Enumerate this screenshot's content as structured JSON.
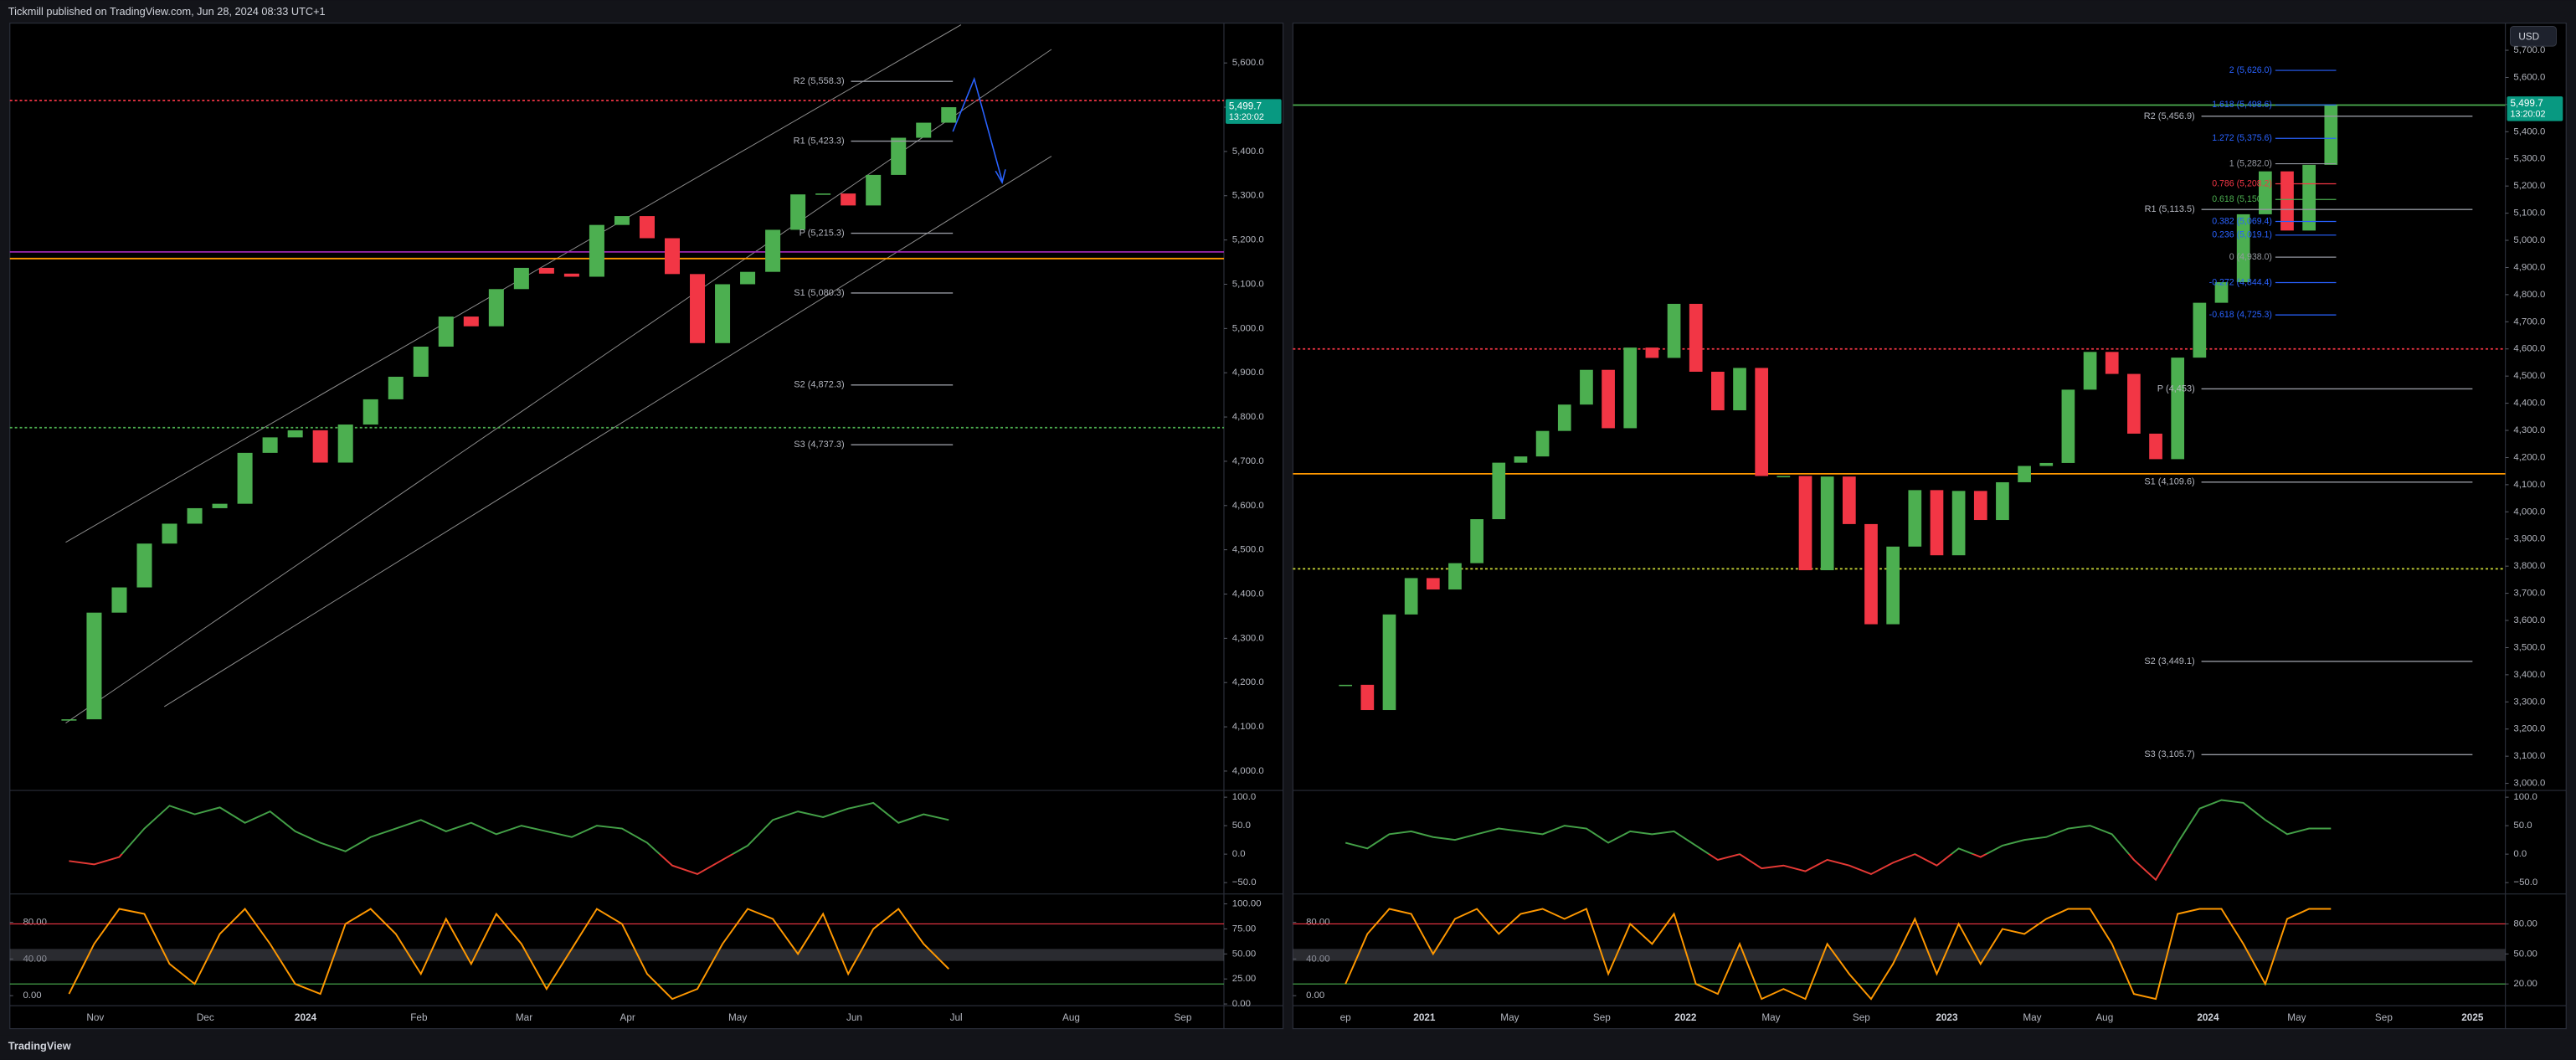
{
  "header": {
    "text": "Tickmill published on TradingView.com, Jun 28, 2024 08:33 UTC+1"
  },
  "footer": {
    "brand": "TradingView"
  },
  "currency": "USD",
  "chart_data": [
    {
      "type": "candlestick",
      "values": [
        4117,
        4358,
        4415,
        4514,
        4559,
        4594,
        4604,
        4719,
        4754,
        4770,
        4697,
        4783,
        4840,
        4891,
        4959,
        5027,
        5005,
        5089,
        5137,
        5124,
        5117,
        5234,
        5254,
        5204,
        5123,
        4967,
        5100,
        5128,
        5223,
        5303,
        5305,
        5278,
        5347,
        5431,
        5465,
        5500
      ],
      "up_color": "#4caf50",
      "down_color": "#f23645",
      "ylim": [
        3960,
        5690
      ],
      "yticks": [
        {
          "value": 4000,
          "label": "4,000.0"
        },
        {
          "value": 4100,
          "label": "4,100.0"
        },
        {
          "value": 4200,
          "label": "4,200.0"
        },
        {
          "value": 4300,
          "label": "4,300.0"
        },
        {
          "value": 4400,
          "label": "4,400.0"
        },
        {
          "value": 4500,
          "label": "4,500.0"
        },
        {
          "value": 4600,
          "label": "4,600.0"
        },
        {
          "value": 4700,
          "label": "4,700.0"
        },
        {
          "value": 4800,
          "label": "4,800.0"
        },
        {
          "value": 4900,
          "label": "4,900.0"
        },
        {
          "value": 5000,
          "label": "5,000.0"
        },
        {
          "value": 5100,
          "label": "5,100.0"
        },
        {
          "value": 5200,
          "label": "5,200.0"
        },
        {
          "value": 5300,
          "label": "5,300.0"
        },
        {
          "value": 5400,
          "label": "5,400.0"
        },
        {
          "value": 5500,
          "label": "5,500.0"
        },
        {
          "value": 5600,
          "label": "5,600.0"
        }
      ],
      "last_price": {
        "value": 5499.7,
        "label": "5,499.7"
      },
      "countdown": "13:20:02",
      "pivots": [
        {
          "label": "R2 (5,558.3)",
          "value": 5558.3
        },
        {
          "label": "R1 (5,423.3)",
          "value": 5423.3
        },
        {
          "label": "P (5,215.3)",
          "value": 5215.3
        },
        {
          "label": "S1 (5,080.3)",
          "value": 5080.3
        },
        {
          "label": "S2 (4,872.3)",
          "value": 4872.3
        },
        {
          "label": "S3 (4,737.3)",
          "value": 4737.3
        }
      ],
      "levels": [
        {
          "value": 5515,
          "color": "#f23645",
          "style": "dotted"
        },
        {
          "value": 5173,
          "color": "#9c27b0",
          "style": "solid"
        },
        {
          "value": 5158,
          "color": "#ff9800",
          "style": "solid"
        },
        {
          "value": 4776,
          "color": "#4caf50",
          "style": "dotted"
        }
      ]
    },
    {
      "type": "line",
      "values": [
        -12,
        -18,
        -5,
        45,
        85,
        70,
        82,
        55,
        75,
        40,
        20,
        5,
        30,
        45,
        60,
        40,
        55,
        35,
        50,
        40,
        30,
        50,
        45,
        20,
        -20,
        -35,
        -10,
        15,
        60,
        75,
        65,
        80,
        90,
        55,
        70,
        60
      ],
      "color_above": "#43a047",
      "color_below": "#e53935",
      "ylim": [
        -67,
        109
      ],
      "yticks": [
        {
          "value": 100,
          "label": "100.0"
        },
        {
          "value": 50,
          "label": "50.0"
        },
        {
          "value": 0,
          "label": "0.0"
        },
        {
          "value": -50,
          "label": "−50.0"
        }
      ]
    },
    {
      "type": "line",
      "values": [
        10,
        60,
        95,
        90,
        40,
        20,
        70,
        95,
        60,
        20,
        10,
        80,
        95,
        70,
        30,
        85,
        40,
        90,
        60,
        15,
        55,
        95,
        80,
        30,
        5,
        15,
        60,
        95,
        85,
        50,
        90,
        30,
        75,
        95,
        60,
        35
      ],
      "color": "#ff9800",
      "ylim": [
        -1.7,
        108.3
      ],
      "yticks": [
        {
          "value": 100,
          "label": "100.00"
        },
        {
          "value": 75,
          "label": "75.00"
        },
        {
          "value": 50,
          "label": "50.00"
        },
        {
          "value": 25,
          "label": "25.00"
        },
        {
          "value": 0,
          "label": "0.00"
        }
      ],
      "y2lim": [
        -10.9,
        109.1
      ],
      "y2ticks": [
        {
          "value": 80,
          "label": "80.00"
        },
        {
          "value": 40,
          "label": "40.00"
        },
        {
          "value": 0,
          "label": "0.00"
        }
      ],
      "ref_lines": [
        {
          "value": 80,
          "color": "#f23645"
        },
        {
          "value": 20,
          "color": "#4caf50"
        }
      ],
      "band": [
        43,
        55
      ],
      "xtick_labels": [
        "Nov",
        "Dec",
        "2024",
        "Feb",
        "Mar",
        "Apr",
        "May",
        "Jun",
        "Jul",
        "Aug",
        "Sep"
      ]
    },
    {
      "type": "candlestick",
      "values": [
        3363,
        3270,
        3622,
        3756,
        3714,
        3811,
        3973,
        4181,
        4204,
        4298,
        4395,
        4523,
        4308,
        4605,
        4567,
        4766,
        4516,
        4374,
        4530,
        4132,
        4132,
        3785,
        4130,
        3955,
        3586,
        3872,
        4080,
        3840,
        4077,
        3970,
        4109,
        4169,
        4180,
        4450,
        4589,
        4508,
        4288,
        4194,
        4568,
        4770,
        4846,
        5096,
        5254,
        5036,
        5278,
        5500
      ],
      "up_color": "#4caf50",
      "down_color": "#f23645",
      "ylim": [
        2980,
        5800
      ],
      "yticks": [
        {
          "value": 3000,
          "label": "3,000.0"
        },
        {
          "value": 3100,
          "label": "3,100.0"
        },
        {
          "value": 3200,
          "label": "3,200.0"
        },
        {
          "value": 3300,
          "label": "3,300.0"
        },
        {
          "value": 3400,
          "label": "3,400.0"
        },
        {
          "value": 3500,
          "label": "3,500.0"
        },
        {
          "value": 3600,
          "label": "3,600.0"
        },
        {
          "value": 3700,
          "label": "3,700.0"
        },
        {
          "value": 3800,
          "label": "3,800.0"
        },
        {
          "value": 3900,
          "label": "3,900.0"
        },
        {
          "value": 4000,
          "label": "4,000.0"
        },
        {
          "value": 4100,
          "label": "4,100.0"
        },
        {
          "value": 4200,
          "label": "4,200.0"
        },
        {
          "value": 4300,
          "label": "4,300.0"
        },
        {
          "value": 4400,
          "label": "4,400.0"
        },
        {
          "value": 4500,
          "label": "4,500.0"
        },
        {
          "value": 4600,
          "label": "4,600.0"
        },
        {
          "value": 4700,
          "label": "4,700.0"
        },
        {
          "value": 4800,
          "label": "4,800.0"
        },
        {
          "value": 4900,
          "label": "4,900.0"
        },
        {
          "value": 5000,
          "label": "5,000.0"
        },
        {
          "value": 5100,
          "label": "5,100.0"
        },
        {
          "value": 5200,
          "label": "5,200.0"
        },
        {
          "value": 5300,
          "label": "5,300.0"
        },
        {
          "value": 5400,
          "label": "5,400.0"
        },
        {
          "value": 5500,
          "label": "5,500.0"
        },
        {
          "value": 5600,
          "label": "5,600.0"
        },
        {
          "value": 5700,
          "label": "5,700.0"
        }
      ],
      "last_price": {
        "value": 5499.7,
        "label": "5,499.7"
      },
      "countdown": "13:20:02",
      "pivots": [
        {
          "label": "R2 (5,456.9)",
          "value": 5456.9
        },
        {
          "label": "R1 (5,113.5)",
          "value": 5113.5
        },
        {
          "label": "P (4,453)",
          "value": 4453
        },
        {
          "label": "S1 (4,109.6)",
          "value": 4109.6
        },
        {
          "label": "S2 (3,449.1)",
          "value": 3449.1
        },
        {
          "label": "S3 (3,105.7)",
          "value": 3105.7
        }
      ],
      "fib": [
        {
          "label": "2 (5,626.0)",
          "value": 5626.0,
          "color": "#2962ff"
        },
        {
          "label": "1.618 (5,498.6)",
          "value": 5498.6,
          "color": "#2962ff"
        },
        {
          "label": "1.272 (5,375.6)",
          "value": 5375.6,
          "color": "#2962ff"
        },
        {
          "label": "1 (5,282.0)",
          "value": 5282.0,
          "color": "#9598a1"
        },
        {
          "label": "0.786 (5,208.2)",
          "value": 5208.2,
          "color": "#f23645"
        },
        {
          "label": "0.618 (5,150.5)",
          "value": 5150.5,
          "color": "#4caf50"
        },
        {
          "label": "0.382 (5,069.4)",
          "value": 5069.4,
          "color": "#2962ff"
        },
        {
          "label": "0.236 (5,019.1)",
          "value": 5019.1,
          "color": "#2962ff"
        },
        {
          "label": "0 (4,938.0)",
          "value": 4938.0,
          "color": "#9598a1"
        },
        {
          "label": "-0.272 (4,844.4)",
          "value": 4844.4,
          "color": "#2962ff"
        },
        {
          "label": "-0.618 (4,725.3)",
          "value": 4725.3,
          "color": "#2962ff"
        }
      ],
      "levels": [
        {
          "value": 5498,
          "color": "#4caf50",
          "style": "solid"
        },
        {
          "value": 4600,
          "color": "#f23645",
          "style": "dotted"
        },
        {
          "value": 4140,
          "color": "#ff9800",
          "style": "solid"
        },
        {
          "value": 3790,
          "color": "#cddc39",
          "style": "dotted"
        }
      ]
    },
    {
      "type": "line",
      "values": [
        20,
        10,
        35,
        40,
        30,
        25,
        35,
        45,
        40,
        35,
        50,
        45,
        20,
        40,
        35,
        40,
        15,
        -10,
        0,
        -25,
        -20,
        -30,
        -10,
        -20,
        -35,
        -15,
        0,
        -20,
        10,
        -5,
        15,
        25,
        30,
        45,
        50,
        35,
        -10,
        -45,
        20,
        80,
        95,
        90,
        60,
        35,
        45,
        45
      ],
      "color_above": "#43a047",
      "color_below": "#e53935",
      "ylim": [
        -67,
        109
      ],
      "yticks": [
        {
          "value": 100,
          "label": "100.0"
        },
        {
          "value": 50,
          "label": "50.0"
        },
        {
          "value": 0,
          "label": "0.0"
        },
        {
          "value": -50,
          "label": "−50.0"
        }
      ]
    },
    {
      "type": "line",
      "values": [
        20,
        70,
        95,
        90,
        50,
        85,
        95,
        70,
        90,
        95,
        85,
        95,
        30,
        80,
        60,
        90,
        20,
        10,
        60,
        5,
        15,
        5,
        60,
        30,
        5,
        40,
        85,
        30,
        80,
        40,
        75,
        70,
        85,
        95,
        95,
        60,
        10,
        5,
        90,
        95,
        95,
        60,
        20,
        85,
        95,
        95
      ],
      "color": "#ff9800",
      "ylim": [
        -1.7,
        108.3
      ],
      "yticks": [
        {
          "value": 80,
          "label": "80.00"
        },
        {
          "value": 50,
          "label": "50.00"
        },
        {
          "value": 20,
          "label": "20.00"
        }
      ],
      "y2lim": [
        -10.9,
        109.1
      ],
      "y2ticks": [
        {
          "value": 80,
          "label": "80.00"
        },
        {
          "value": 40,
          "label": "40.00"
        },
        {
          "value": 0,
          "label": "0.00"
        }
      ],
      "ref_lines": [
        {
          "value": 80,
          "color": "#f23645"
        },
        {
          "value": 20,
          "color": "#4caf50"
        }
      ],
      "band": [
        43,
        55
      ],
      "xtick_labels": [
        "ep",
        "2021",
        "May",
        "Sep",
        "2022",
        "May",
        "Sep",
        "2023",
        "May",
        "Aug",
        "2024",
        "May",
        "Sep",
        "2025"
      ]
    }
  ]
}
